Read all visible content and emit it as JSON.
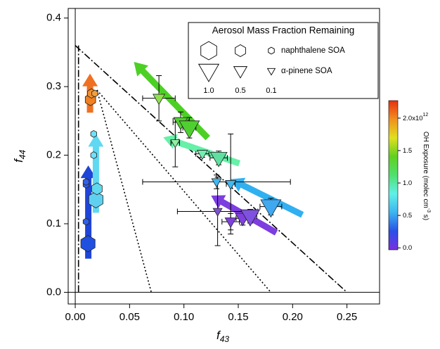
{
  "chart_data": {
    "type": "scatter",
    "x_label": {
      "base": "f",
      "sub": "43"
    },
    "y_label": {
      "base": "f",
      "sub": "44"
    },
    "xlim": [
      -0.0065,
      0.28
    ],
    "ylim": [
      -0.017,
      0.414
    ],
    "xticks": [
      {
        "value": 0,
        "label": "0.00"
      },
      {
        "value": 0.05,
        "label": "0.05"
      },
      {
        "value": 0.1,
        "label": "0.10"
      },
      {
        "value": 0.15,
        "label": "0.15"
      },
      {
        "value": 0.2,
        "label": "0.20"
      },
      {
        "value": 0.25,
        "label": "0.25"
      }
    ],
    "yticks": [
      {
        "value": 0,
        "label": "0.0"
      },
      {
        "value": 0.1,
        "label": "0.1"
      },
      {
        "value": 0.2,
        "label": "0.2"
      },
      {
        "value": 0.3,
        "label": "0.3"
      },
      {
        "value": 0.4,
        "label": "0.4"
      }
    ],
    "zero_lines": {
      "x": 0,
      "y": 0
    },
    "reference_lines": [
      {
        "style": "dashdot",
        "x": [
          0,
          0.25
        ],
        "y": [
          0.36,
          0
        ]
      },
      {
        "style": "dashdot",
        "x": [
          0.003,
          0.003
        ],
        "y": [
          0,
          0.36
        ]
      },
      {
        "style": "dotted",
        "x": [
          0.02,
          0.07
        ],
        "y": [
          0.295,
          0
        ]
      },
      {
        "style": "dotted",
        "x": [
          0.02,
          0.18
        ],
        "y": [
          0.295,
          0
        ]
      }
    ],
    "arrows": [
      {
        "color": "#1f44d8",
        "x": [
          0.012,
          0.012
        ],
        "y": [
          0.049,
          0.185
        ]
      },
      {
        "color": "#5fd8f2",
        "x": [
          0.019,
          0.019
        ],
        "y": [
          0.116,
          0.231
        ]
      },
      {
        "color": "#f07022",
        "x": [
          0.0136,
          0.0136
        ],
        "y": [
          0.262,
          0.319
        ]
      },
      {
        "color": "#4cd024",
        "x": [
          0.122,
          0.054
        ],
        "y": [
          0.225,
          0.336
        ]
      },
      {
        "color": "#66f0a8",
        "x": [
          0.151,
          0.081
        ],
        "y": [
          0.188,
          0.226
        ]
      },
      {
        "color": "#30b0f0",
        "x": [
          0.209,
          0.143
        ],
        "y": [
          0.113,
          0.165
        ]
      },
      {
        "color": "#7d3ee0",
        "x": [
          0.185,
          0.125
        ],
        "y": [
          0.087,
          0.141
        ]
      }
    ],
    "series": [
      {
        "name": "naphthalene SOA",
        "marker": "hexagon",
        "x": [
          0.0117,
          0.01,
          0.01,
          0.01,
          0.019,
          0.02,
          0.017,
          0.017,
          0.014,
          0.015,
          0.018
        ],
        "y": [
          0.071,
          0.103,
          0.157,
          0.161,
          0.135,
          0.151,
          0.2,
          0.231,
          0.281,
          0.29,
          0.29
        ],
        "size": [
          0.85,
          0.1,
          0.1,
          0.1,
          0.85,
          0.5,
          0.1,
          0.1,
          0.5,
          0.3,
          0.1
        ],
        "colors": [
          "#2050e0",
          "#3060e8",
          "#3060e8",
          "#3060e8",
          "#60d0f0",
          "#60d8f0",
          "#70e0f8",
          "#70e0f8",
          "#f08020",
          "#f09030",
          "#f0a040"
        ]
      },
      {
        "name": "α-pinene SOA",
        "marker": "triangle",
        "x": [
          0.077,
          0.097,
          0.105,
          0.092,
          0.117,
          0.132,
          0.131,
          0.13,
          0.143,
          0.18,
          0.143,
          0.154,
          0.161
        ],
        "y": [
          0.283,
          0.248,
          0.24,
          0.218,
          0.202,
          0.196,
          0.118,
          0.161,
          0.158,
          0.125,
          0.103,
          0.108,
          0.111
        ],
        "size": [
          0.4,
          0.55,
          1.0,
          0.2,
          0.3,
          0.75,
          0.2,
          0.25,
          0.3,
          1.0,
          0.35,
          0.6,
          0.9
        ],
        "xerr": [
          0.015,
          0.007,
          0.006,
          0.004,
          0.006,
          0.008,
          0.037,
          0.068,
          0.004,
          0.01,
          0.008,
          0.006,
          0.006
        ],
        "yerr": [
          0.033,
          0.015,
          0.015,
          0.035,
          0.005,
          0.01,
          0.05,
          0.01,
          0.073,
          0.012,
          0.012,
          0.01,
          0.01
        ],
        "colors": [
          "#90e050",
          "#50d030",
          "#50d030",
          "#90f0a0",
          "#70f0b0",
          "#60e0a0",
          "#8050d0",
          "#40b8f0",
          "#40b8f0",
          "#40a8f0",
          "#8040e0",
          "#8040e0",
          "#8050e0"
        ]
      }
    ],
    "legend": {
      "title": "Aerosol Mass Fraction Remaining",
      "sizes": [
        {
          "value": 1.0,
          "label": "1.0"
        },
        {
          "value": 0.5,
          "label": "0.5"
        },
        {
          "value": 0.1,
          "label": "0.1"
        }
      ]
    },
    "colorbar": {
      "label": {
        "text": "OH Exposure (molec cm",
        "sup": "-3",
        "tail": " s)"
      },
      "lim": [
        -0.03,
        2.27
      ],
      "colors": [
        "#7a2fe0",
        "#2a50e8",
        "#3cb4f0",
        "#60f0e8",
        "#50e070",
        "#60d020",
        "#e0e020",
        "#f09020",
        "#e83010"
      ],
      "ticks": [
        {
          "value": 0,
          "label": "0.0"
        },
        {
          "value": 0.5,
          "label": "0.5"
        },
        {
          "value": 1.0,
          "label": "1.0"
        },
        {
          "value": 1.5,
          "label": "1.5"
        },
        {
          "value": 2.0,
          "label": "2.0x10",
          "sup": "12"
        }
      ]
    }
  }
}
